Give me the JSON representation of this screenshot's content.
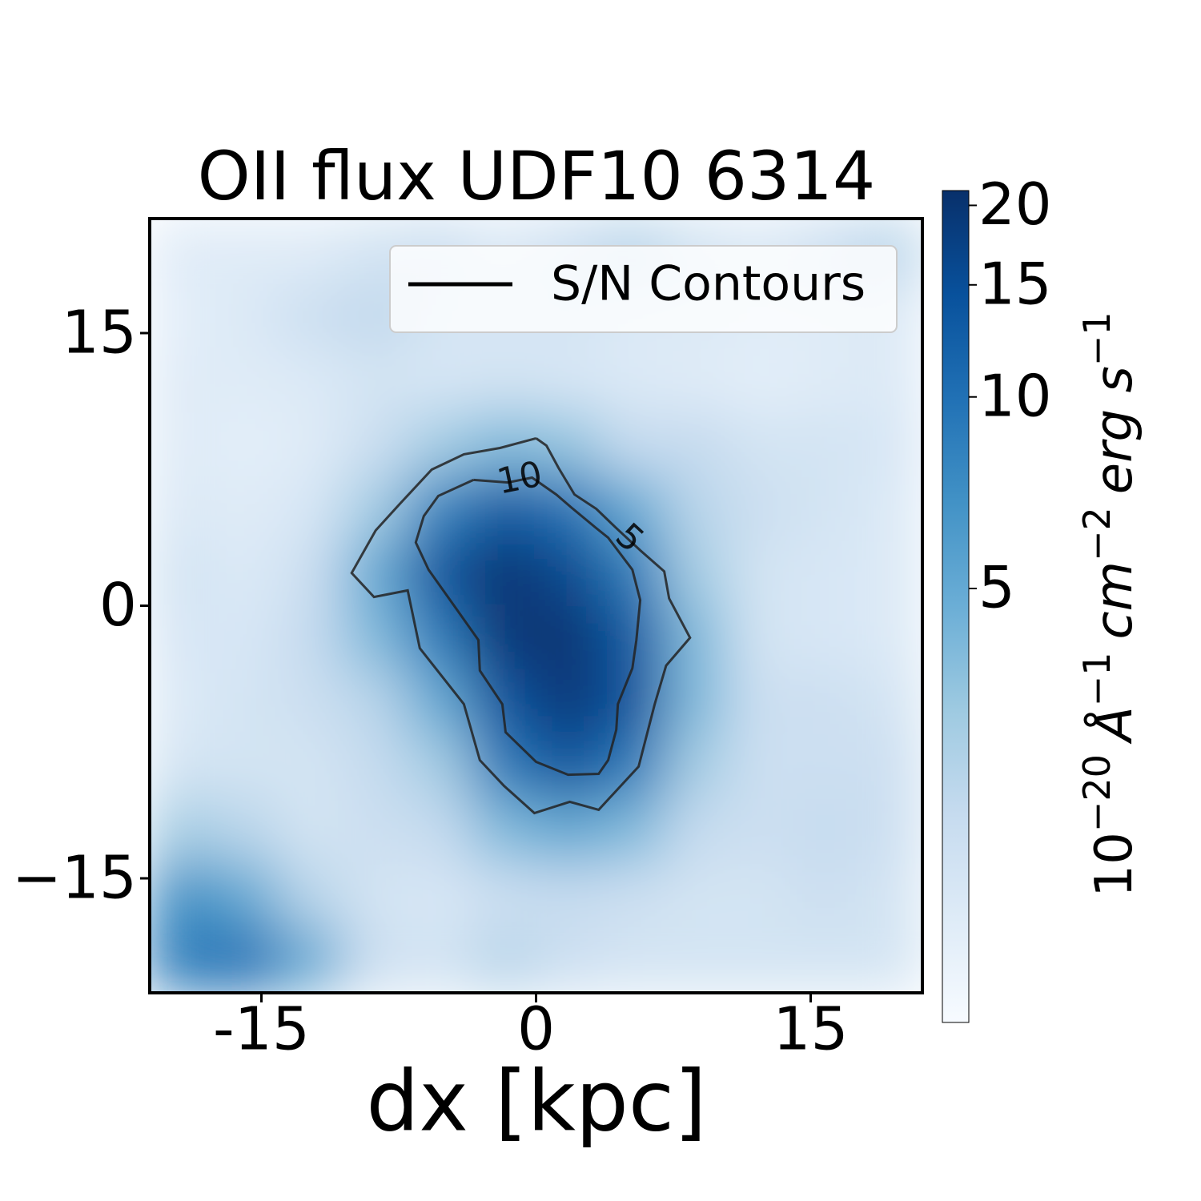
{
  "chart_data": {
    "type": "heatmap",
    "title": "OII flux UDF10 6314",
    "x_label": "dx [kpc]",
    "xlim": [
      -21.1,
      21.1
    ],
    "ylim": [
      -21.3,
      21.3
    ],
    "xticks": [
      -15,
      0,
      15
    ],
    "yticks": [
      {
        "value": 15,
        "label": "15"
      },
      {
        "value": 0,
        "label": "0"
      },
      {
        "value": -15,
        "label": "−15"
      }
    ],
    "image": [
      [
        1.5,
        1.5,
        1.5,
        1.8,
        2,
        1.6,
        2,
        2.5,
        1.8,
        1.6,
        2,
        2.5
      ],
      [
        1.4,
        1.6,
        2,
        2.3,
        1.8,
        1.7,
        1.8,
        1.6,
        1.6,
        1.5,
        1.5,
        1.6
      ],
      [
        1.5,
        1.5,
        1.6,
        1.8,
        1.7,
        1.8,
        1.7,
        1.6,
        1.5,
        1.4,
        1.5,
        1.6
      ],
      [
        1.5,
        1.4,
        1.5,
        2,
        3,
        4,
        3.5,
        2.2,
        2.2,
        1.8,
        1.8,
        1.7
      ],
      [
        1.6,
        1.5,
        1.7,
        3,
        8,
        13,
        10,
        5,
        2.5,
        2,
        1.8,
        1.6
      ],
      [
        1.8,
        1.6,
        2,
        5,
        14,
        20,
        16,
        9,
        3,
        1.8,
        1.7,
        1.6
      ],
      [
        1.7,
        1.7,
        2.2,
        4,
        9,
        19,
        20,
        13,
        4,
        1.8,
        1.7,
        1.6
      ],
      [
        1.6,
        1.8,
        2,
        2.5,
        5,
        14,
        19,
        14,
        4,
        2,
        2,
        1.8
      ],
      [
        1.8,
        1.8,
        1.8,
        2.2,
        3,
        9,
        14,
        9,
        3,
        2,
        2,
        2
      ],
      [
        3,
        2.5,
        1.8,
        2,
        2.2,
        4,
        5,
        4,
        2.2,
        2,
        2.2,
        2
      ],
      [
        7,
        5,
        2.5,
        1.8,
        1.7,
        2,
        2.2,
        2,
        1.8,
        1.8,
        2,
        1.8
      ],
      [
        9,
        10,
        5,
        2,
        1.8,
        2.5,
        2,
        1.8,
        1.8,
        1.8,
        1.8,
        1.8
      ]
    ],
    "colormap": [
      "#f7fbff",
      "#deebf7",
      "#c6dbef",
      "#9ecae1",
      "#6baed6",
      "#4292c6",
      "#2171b5",
      "#08519c",
      "#08306b"
    ],
    "color_scale": "log",
    "clim": [
      1.04,
      21.1
    ],
    "colorbar_ticks": [
      5,
      10,
      15,
      20
    ],
    "colorbar_label_parts": [
      {
        "text": "10",
        "sup": "−20"
      },
      {
        "text": "Å",
        "sup": "−1"
      },
      {
        "text": "cm",
        "sup": "−2"
      },
      {
        "text": "erg s",
        "sup": "−1"
      }
    ],
    "contour_color": "#222222",
    "contours": [
      {
        "level": 5,
        "x": [
          0,
          0.57,
          1.23,
          2.1,
          3.29,
          4.38,
          5.7,
          7.0,
          7.27,
          8.41,
          7.1,
          6.48,
          5.6,
          3.42,
          1.84,
          -0.09,
          -1.75,
          -3.07,
          -3.94,
          -6.35,
          -7.01,
          -8.85,
          -10.07,
          -8.76,
          -7.45,
          -5.7,
          -3.94,
          -1.97,
          0
        ],
        "y": [
          9.21,
          8.81,
          7.58,
          6.12,
          5.33,
          4.27,
          3.04,
          1.89,
          0.4,
          -1.76,
          -3.3,
          -5.42,
          -8.85,
          -11.23,
          -10.79,
          -11.41,
          -9.91,
          -8.5,
          -5.42,
          -2.34,
          0.84,
          0.48,
          1.8,
          4.14,
          5.59,
          7.49,
          8.33,
          8.68,
          9.21
        ]
      },
      {
        "level": 10,
        "x": [
          -3.42,
          -1.53,
          -0.22,
          1.1,
          1.97,
          3.29,
          3.94,
          5.26,
          5.69,
          5.48,
          5.26,
          4.47,
          4.38,
          3.94,
          3.42,
          1.75,
          0,
          -1.66,
          -1.84,
          -3.07,
          -3.15,
          -4.38,
          -5.87,
          -6.57,
          -6.13,
          -5.34,
          -3.42
        ],
        "y": [
          6.92,
          6.78,
          7.05,
          6.12,
          5.37,
          4.27,
          3.74,
          1.98,
          0.31,
          -1.89,
          -3.44,
          -5.42,
          -6.83,
          -8.5,
          -9.25,
          -9.3,
          -8.59,
          -6.96,
          -5.42,
          -3.57,
          -1.89,
          -0.13,
          1.98,
          3.48,
          4.93,
          6.04,
          6.92
        ]
      }
    ],
    "legend": {
      "label": "S/N Contours",
      "loc": "upper right"
    }
  }
}
